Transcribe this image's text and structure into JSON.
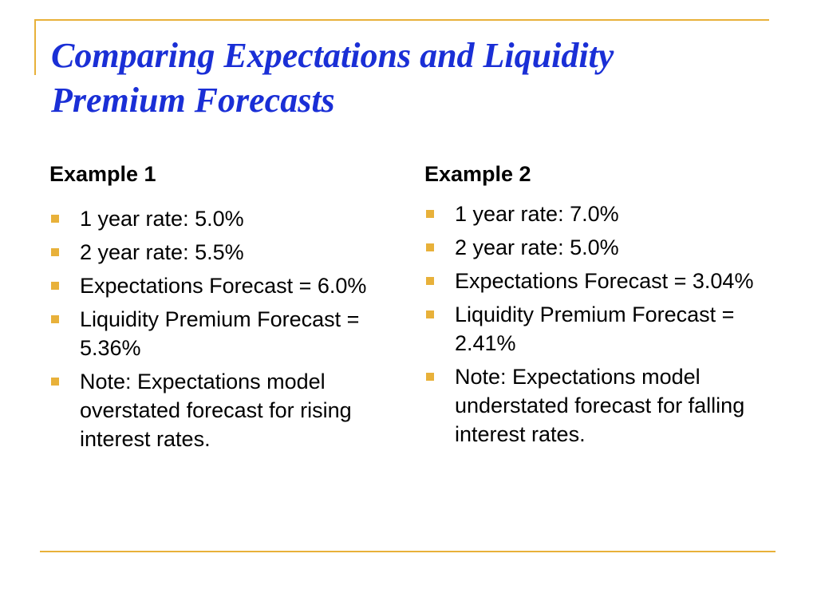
{
  "slide": {
    "title_line1": "Comparing Expectations and Liquidity",
    "title_line2": "Premium Forecasts",
    "accent_color": "#e8b13a",
    "title_color": "#1a2fd6"
  },
  "example1": {
    "heading": "Example 1",
    "items": [
      "1 year rate: 5.0%",
      "2 year rate: 5.5%",
      "Expectations Forecast = 6.0%",
      "Liquidity Premium Forecast = 5.36%",
      "Note:  Expectations model overstated forecast for rising interest rates."
    ]
  },
  "example2": {
    "heading": "Example 2",
    "items": [
      "1 year rate: 7.0%",
      "2 year rate: 5.0%",
      "Expectations Forecast = 3.04%",
      "Liquidity Premium Forecast = 2.41%",
      "Note: Expectations model understated forecast for falling interest rates."
    ]
  }
}
